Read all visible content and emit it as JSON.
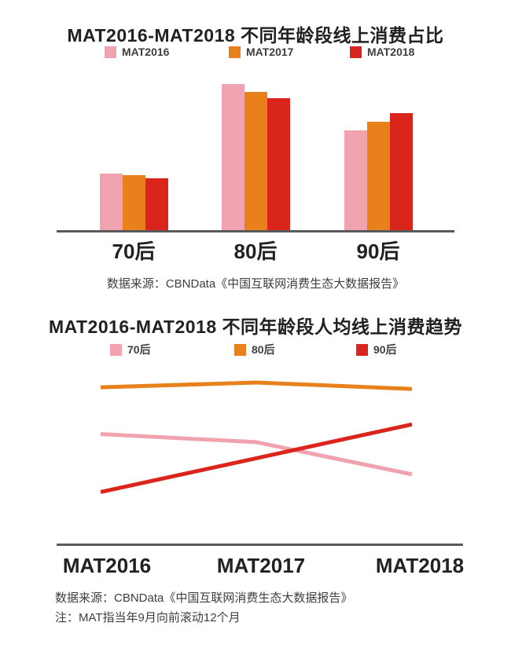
{
  "colors": {
    "pink": "#F0A2AF",
    "orange": "#E8811C",
    "red": "#DA251C",
    "axis": "#58595B",
    "title_text": "#232020",
    "muted_text": "#3E3E3E"
  },
  "chart_data": [
    {
      "type": "bar",
      "title": "MAT2016-MAT2018 不同年龄段线上消费占比",
      "categories": [
        "70后",
        "80后",
        "90后"
      ],
      "series": [
        {
          "name": "MAT2016",
          "color": "#F0A2AF",
          "values": [
            36,
            93,
            63.5
          ]
        },
        {
          "name": "MAT2017",
          "color": "#E8811C",
          "values": [
            35,
            88,
            69
          ]
        },
        {
          "name": "MAT2018",
          "color": "#DA251C",
          "values": [
            33,
            84,
            74.5
          ]
        }
      ],
      "ylabel": "",
      "xlabel": "",
      "ylim": [
        0,
        100
      ],
      "y_axis_visible": false,
      "grid": false,
      "legend_position": "top"
    },
    {
      "type": "line",
      "title": "MAT2016-MAT2018 不同年龄段人均线上消费趋势",
      "x": [
        "MAT2016",
        "MAT2017",
        "MAT2018"
      ],
      "series": [
        {
          "name": "70后",
          "color": "#F0A2AF",
          "values": [
            68,
            63,
            43
          ]
        },
        {
          "name": "80后",
          "color": "#E8811C",
          "values": [
            97,
            100,
            96
          ]
        },
        {
          "name": "90后",
          "color": "#DA251C",
          "values": [
            32,
            53,
            74
          ]
        }
      ],
      "ylabel": "",
      "xlabel": "",
      "ylim": [
        0,
        110
      ],
      "y_axis_visible": false,
      "grid": false,
      "legend_position": "top"
    }
  ],
  "sources": {
    "chart1": "数据来源：CBNData《中国互联网消费生态大数据报告》",
    "chart2": "数据来源：CBNData《中国互联网消费生态大数据报告》",
    "note": "注：MAT指当年9月向前滚动12个月"
  }
}
